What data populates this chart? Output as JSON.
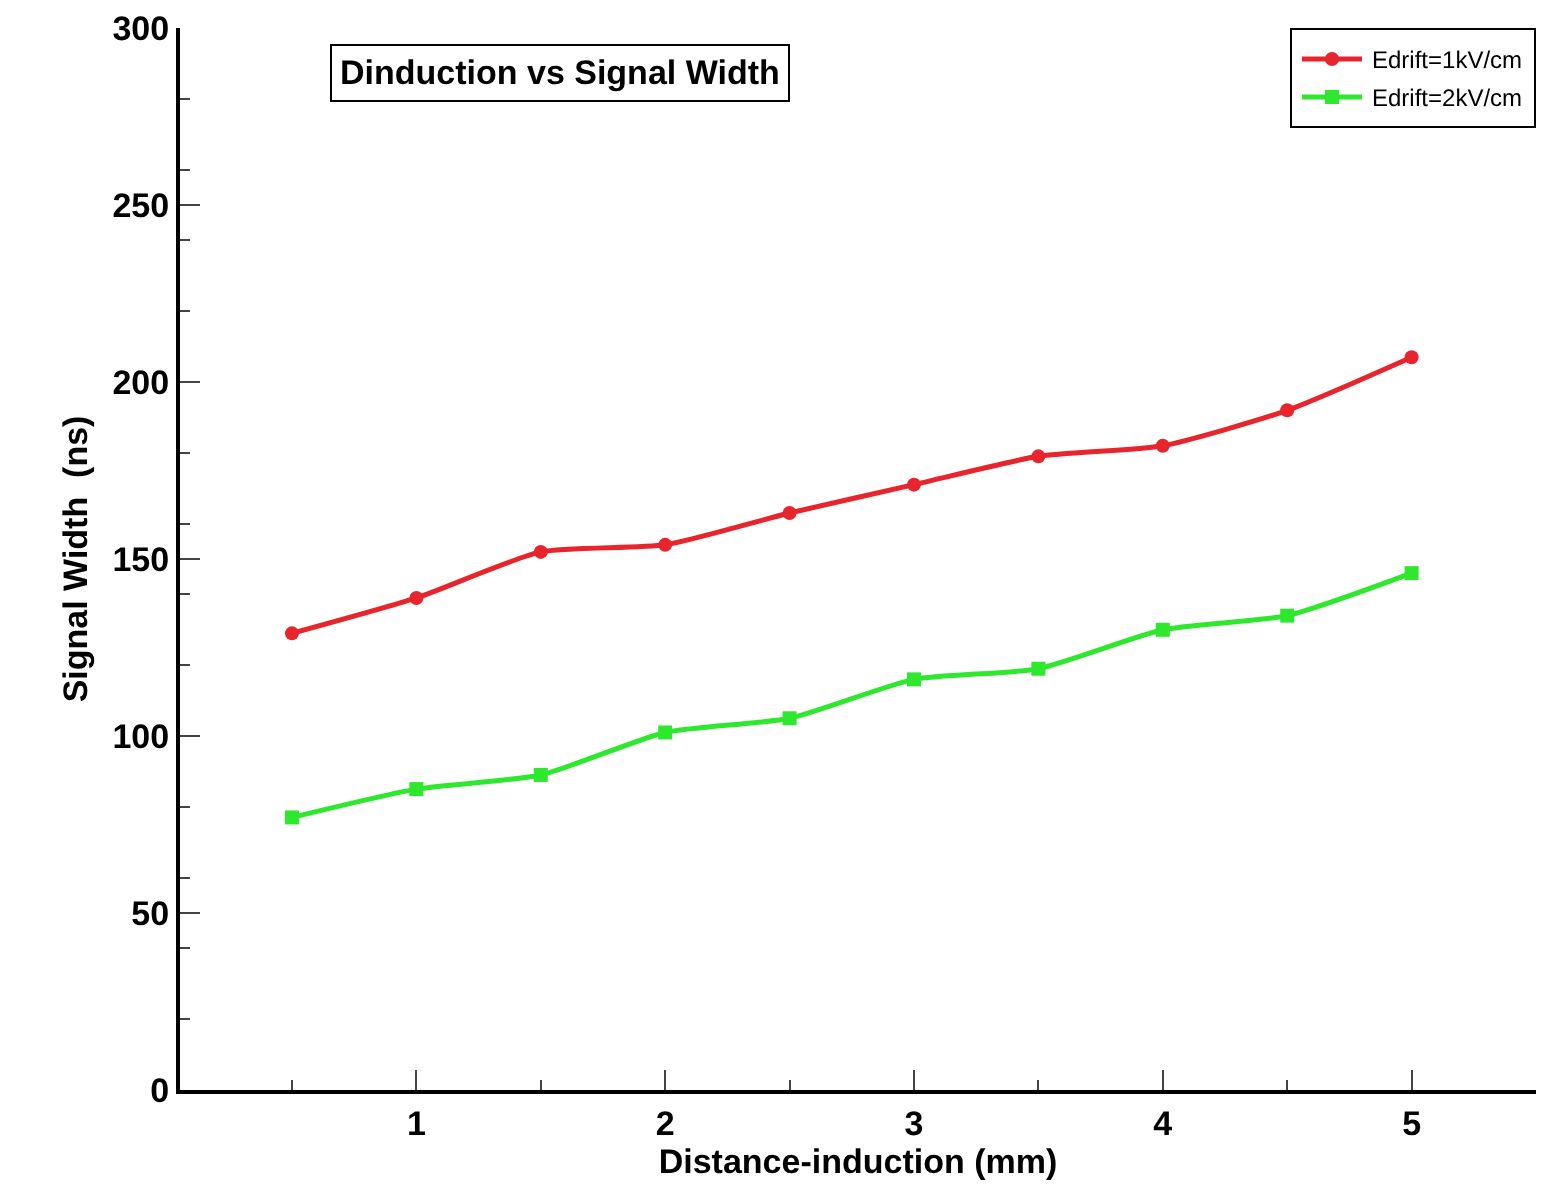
{
  "chart_data": {
    "type": "line",
    "title": "Dinduction vs Signal Width",
    "xlabel": "Distance-induction (mm)",
    "ylabel": "Signal Width  (ns)",
    "x": [
      0.5,
      1,
      1.5,
      2,
      2.5,
      3,
      3.5,
      4,
      4.5,
      5
    ],
    "series": [
      {
        "name": "Edrift=1kV/cm",
        "color": "#e8242c",
        "marker": "circle",
        "values": [
          129,
          139,
          152,
          154,
          163,
          171,
          179,
          182,
          192,
          207
        ]
      },
      {
        "name": "Edrift=2kV/cm",
        "color": "#2ee82e",
        "marker": "square",
        "values": [
          77,
          85,
          89,
          101,
          105,
          116,
          119,
          130,
          134,
          146
        ]
      }
    ],
    "xlim": [
      0.05,
      5.5
    ],
    "xticks": [
      1,
      2,
      3,
      4,
      5
    ],
    "ylim": [
      0,
      300
    ],
    "yticks": [
      0,
      50,
      100,
      150,
      200,
      250,
      300
    ],
    "legend": "top right",
    "line_style": "solid"
  }
}
